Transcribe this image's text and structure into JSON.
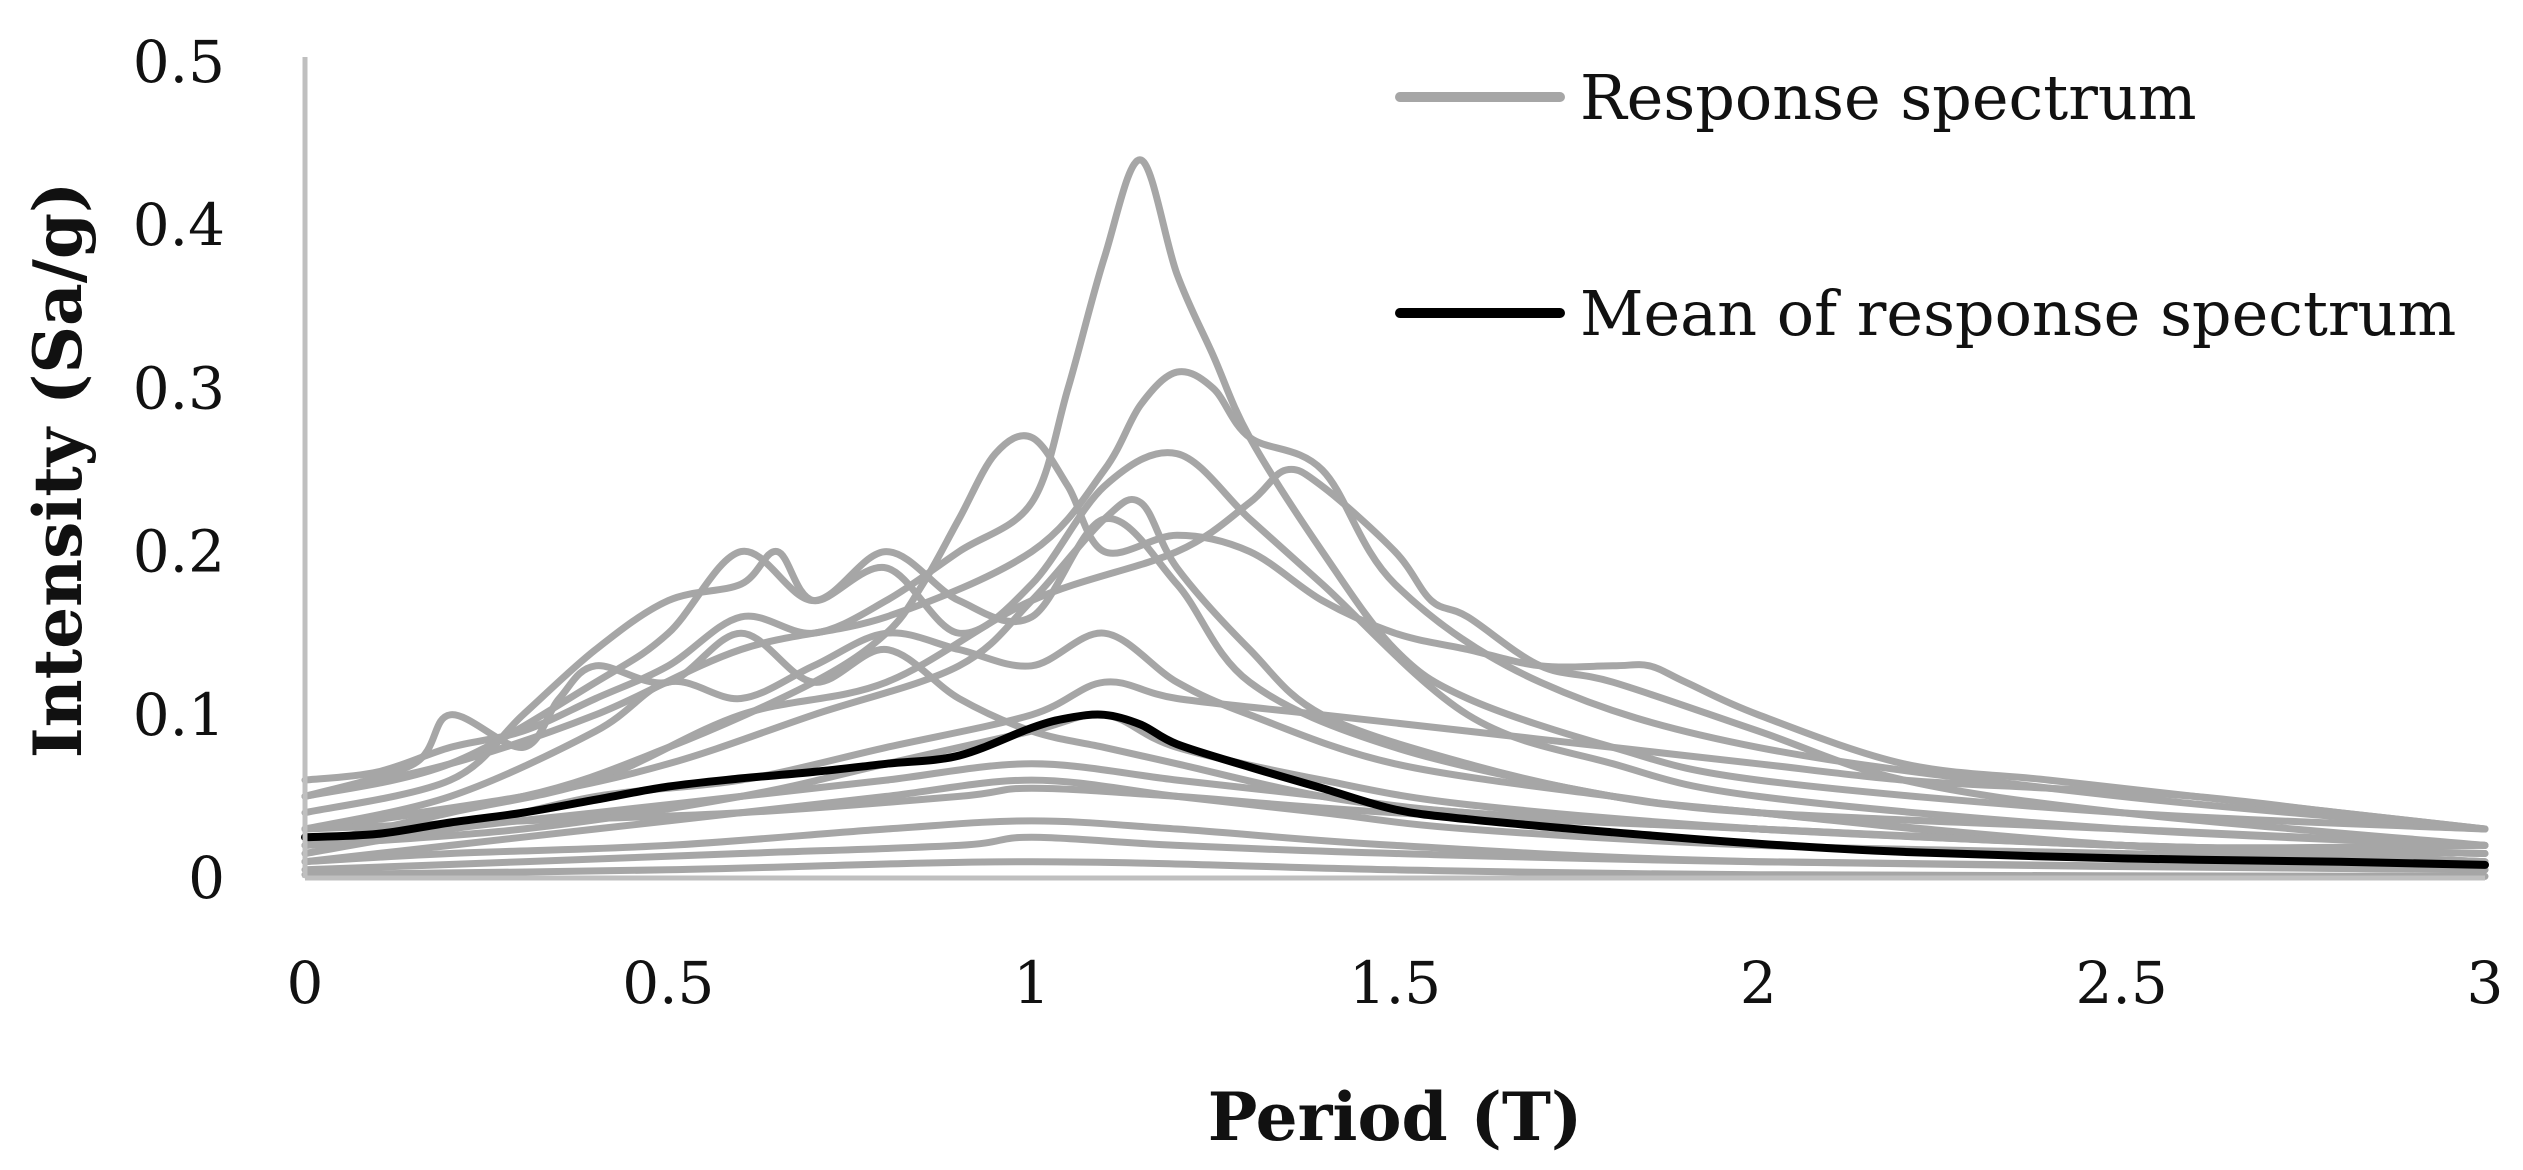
{
  "chart_data": {
    "type": "line",
    "title": "",
    "xlabel": "Period (T)",
    "ylabel": "Intensity (Sa/g)",
    "xlim": [
      0,
      3
    ],
    "ylim": [
      0,
      0.5
    ],
    "x_ticks": [
      0,
      0.5,
      1,
      1.5,
      2,
      2.5,
      3
    ],
    "x_tick_labels": [
      "0",
      "0.5",
      "1",
      "1.5",
      "2",
      "2.5",
      "3"
    ],
    "y_ticks": [
      0,
      0.1,
      0.2,
      0.3,
      0.4,
      0.5
    ],
    "y_tick_labels": [
      "0",
      "0.1",
      "0.2",
      "0.3",
      "0.4",
      "0.5"
    ],
    "grid": false,
    "legend_position": "top-right",
    "colors": {
      "spectrum": "#a6a6a6",
      "mean": "#000000",
      "axis": "#bfbfbf"
    },
    "legend": [
      {
        "label": "Response spectrum",
        "series": "spectrum"
      },
      {
        "label": "Mean of response spectrum",
        "series": "mean"
      }
    ],
    "series": [
      {
        "name": "Response spectrum",
        "style": "spectrum",
        "x": [
          0,
          0.1,
          0.2,
          0.3,
          0.4,
          0.5,
          0.6,
          0.7,
          0.8,
          0.9,
          1.0,
          1.05,
          1.1,
          1.15,
          1.2,
          1.25,
          1.3,
          1.4,
          1.5,
          1.6,
          1.8,
          2.0,
          2.5,
          3.0
        ],
        "y": [
          0.06,
          0.065,
          0.08,
          0.09,
          0.11,
          0.13,
          0.16,
          0.15,
          0.17,
          0.2,
          0.23,
          0.3,
          0.38,
          0.44,
          0.37,
          0.32,
          0.27,
          0.2,
          0.14,
          0.11,
          0.08,
          0.06,
          0.04,
          0.03
        ]
      },
      {
        "name": "Response spectrum",
        "style": "spectrum",
        "x": [
          0,
          0.2,
          0.4,
          0.6,
          0.8,
          1.0,
          1.1,
          1.15,
          1.2,
          1.25,
          1.3,
          1.4,
          1.5,
          1.7,
          2.0,
          2.5,
          3.0
        ],
        "y": [
          0.05,
          0.07,
          0.1,
          0.14,
          0.16,
          0.2,
          0.25,
          0.29,
          0.31,
          0.3,
          0.27,
          0.25,
          0.18,
          0.12,
          0.08,
          0.05,
          0.03
        ]
      },
      {
        "name": "Response spectrum",
        "style": "spectrum",
        "x": [
          0,
          0.2,
          0.3,
          0.4,
          0.5,
          0.6,
          0.65,
          0.7,
          0.8,
          0.9,
          1.0,
          1.1,
          1.2,
          1.3,
          1.4,
          1.6,
          1.8,
          2.0,
          2.5,
          3.0
        ],
        "y": [
          0.04,
          0.06,
          0.1,
          0.14,
          0.17,
          0.18,
          0.2,
          0.17,
          0.19,
          0.15,
          0.18,
          0.24,
          0.26,
          0.22,
          0.18,
          0.1,
          0.07,
          0.05,
          0.03,
          0.02
        ]
      },
      {
        "name": "Response spectrum",
        "style": "spectrum",
        "x": [
          0,
          0.3,
          0.5,
          0.7,
          0.8,
          0.85,
          0.9,
          0.95,
          1.0,
          1.05,
          1.1,
          1.2,
          1.3,
          1.4,
          1.5,
          1.6,
          1.7,
          1.8,
          1.85,
          1.9,
          2.0,
          2.2,
          2.4,
          2.6,
          3.0
        ],
        "y": [
          0.03,
          0.05,
          0.08,
          0.12,
          0.15,
          0.18,
          0.22,
          0.26,
          0.27,
          0.24,
          0.2,
          0.21,
          0.2,
          0.17,
          0.15,
          0.14,
          0.13,
          0.13,
          0.13,
          0.12,
          0.1,
          0.07,
          0.06,
          0.05,
          0.03
        ]
      },
      {
        "name": "Response spectrum",
        "style": "spectrum",
        "x": [
          0,
          0.2,
          0.4,
          0.6,
          0.8,
          1.0,
          1.2,
          1.3,
          1.35,
          1.4,
          1.5,
          1.55,
          1.6,
          1.7,
          1.8,
          2.0,
          2.2,
          2.5,
          3.0
        ],
        "y": [
          0.02,
          0.04,
          0.06,
          0.1,
          0.12,
          0.17,
          0.2,
          0.23,
          0.25,
          0.24,
          0.2,
          0.17,
          0.16,
          0.13,
          0.12,
          0.09,
          0.06,
          0.04,
          0.02
        ]
      },
      {
        "name": "Response spectrum",
        "style": "spectrum",
        "x": [
          0,
          0.2,
          0.4,
          0.5,
          0.6,
          0.7,
          0.8,
          0.9,
          1.0,
          1.1,
          1.2,
          1.3,
          1.5,
          1.8,
          2.0,
          2.5,
          3.0
        ],
        "y": [
          0.05,
          0.07,
          0.12,
          0.15,
          0.2,
          0.17,
          0.2,
          0.17,
          0.16,
          0.22,
          0.18,
          0.12,
          0.08,
          0.05,
          0.04,
          0.02,
          0.02
        ]
      },
      {
        "name": "Response spectrum",
        "style": "spectrum",
        "x": [
          0,
          0.3,
          0.5,
          0.7,
          0.9,
          1.0,
          1.1,
          1.15,
          1.2,
          1.3,
          1.4,
          1.6,
          1.8,
          2.0,
          2.5,
          3.0
        ],
        "y": [
          0.03,
          0.05,
          0.07,
          0.1,
          0.13,
          0.17,
          0.22,
          0.23,
          0.19,
          0.14,
          0.1,
          0.07,
          0.05,
          0.04,
          0.02,
          0.01
        ]
      },
      {
        "name": "Response spectrum",
        "style": "spectrum",
        "x": [
          0,
          0.15,
          0.2,
          0.3,
          0.35,
          0.4,
          0.5,
          0.6,
          0.7,
          0.8,
          0.9,
          1.0,
          1.1,
          1.2,
          1.4,
          1.6,
          2.0,
          2.5,
          3.0
        ],
        "y": [
          0.05,
          0.07,
          0.1,
          0.08,
          0.11,
          0.13,
          0.12,
          0.15,
          0.12,
          0.14,
          0.11,
          0.09,
          0.08,
          0.07,
          0.05,
          0.04,
          0.03,
          0.02,
          0.01
        ]
      },
      {
        "name": "Response spectrum",
        "style": "spectrum",
        "x": [
          0,
          0.2,
          0.4,
          0.6,
          0.8,
          1.0,
          1.1,
          1.2,
          1.4,
          1.6,
          1.8,
          2.0,
          2.2,
          2.4,
          2.6,
          2.8,
          3.0
        ],
        "y": [
          0.02,
          0.03,
          0.05,
          0.06,
          0.08,
          0.1,
          0.12,
          0.11,
          0.1,
          0.09,
          0.08,
          0.07,
          0.06,
          0.055,
          0.05,
          0.04,
          0.03
        ]
      },
      {
        "name": "Response spectrum",
        "style": "spectrum",
        "x": [
          0,
          0.2,
          0.4,
          0.5,
          0.6,
          0.7,
          0.8,
          0.9,
          1.0,
          1.1,
          1.2,
          1.3,
          1.5,
          1.8,
          2.0,
          2.5,
          3.0
        ],
        "y": [
          0.03,
          0.05,
          0.09,
          0.12,
          0.11,
          0.13,
          0.15,
          0.14,
          0.13,
          0.15,
          0.12,
          0.1,
          0.07,
          0.05,
          0.04,
          0.03,
          0.02
        ]
      },
      {
        "name": "Response spectrum",
        "style": "spectrum",
        "x": [
          0,
          0.2,
          0.4,
          0.6,
          0.8,
          1.0,
          1.2,
          1.4,
          1.6,
          2.0,
          2.5,
          3.0
        ],
        "y": [
          0.015,
          0.03,
          0.04,
          0.05,
          0.06,
          0.07,
          0.06,
          0.05,
          0.04,
          0.03,
          0.02,
          0.015
        ]
      },
      {
        "name": "Response spectrum",
        "style": "spectrum",
        "x": [
          0,
          0.2,
          0.4,
          0.6,
          0.8,
          1.0,
          1.2,
          1.4,
          1.6,
          2.0,
          2.5,
          3.0
        ],
        "y": [
          0.01,
          0.02,
          0.03,
          0.04,
          0.05,
          0.06,
          0.05,
          0.04,
          0.03,
          0.02,
          0.015,
          0.01
        ]
      },
      {
        "name": "Response spectrum",
        "style": "spectrum",
        "x": [
          0,
          0.3,
          0.6,
          0.8,
          1.0,
          1.1,
          1.2,
          1.4,
          1.6,
          2.0,
          2.5,
          3.0
        ],
        "y": [
          0.02,
          0.03,
          0.05,
          0.07,
          0.09,
          0.1,
          0.08,
          0.06,
          0.045,
          0.03,
          0.02,
          0.01
        ]
      },
      {
        "name": "Response spectrum",
        "style": "spectrum",
        "x": [
          0,
          0.3,
          0.6,
          0.9,
          1.0,
          1.2,
          1.5,
          2.0,
          3.0
        ],
        "y": [
          0.005,
          0.01,
          0.015,
          0.02,
          0.025,
          0.02,
          0.015,
          0.01,
          0.005
        ]
      },
      {
        "name": "Response spectrum",
        "style": "spectrum",
        "x": [
          0,
          0.3,
          0.6,
          0.9,
          1.0,
          1.2,
          1.5,
          2.0,
          2.5,
          3.0
        ],
        "y": [
          0.03,
          0.035,
          0.04,
          0.05,
          0.055,
          0.05,
          0.04,
          0.03,
          0.02,
          0.015
        ]
      },
      {
        "name": "Response spectrum",
        "style": "spectrum",
        "x": [
          0,
          0.2,
          0.5,
          0.8,
          1.0,
          1.2,
          1.5,
          2.0,
          3.0
        ],
        "y": [
          0.01,
          0.015,
          0.02,
          0.03,
          0.035,
          0.03,
          0.02,
          0.01,
          0.005
        ]
      },
      {
        "name": "Response spectrum",
        "style": "spectrum",
        "x": [
          0,
          0.5,
          1.0,
          1.5,
          2.0,
          3.0
        ],
        "y": [
          0.002,
          0.005,
          0.01,
          0.005,
          0.002,
          0.001
        ]
      },
      {
        "name": "Mean of response spectrum",
        "style": "mean",
        "x": [
          0,
          0.1,
          0.2,
          0.3,
          0.4,
          0.5,
          0.6,
          0.7,
          0.8,
          0.9,
          1.0,
          1.05,
          1.1,
          1.15,
          1.2,
          1.3,
          1.4,
          1.5,
          1.6,
          1.8,
          2.0,
          2.2,
          2.5,
          2.8,
          3.0
        ],
        "y": [
          0.025,
          0.027,
          0.034,
          0.04,
          0.048,
          0.056,
          0.061,
          0.065,
          0.07,
          0.075,
          0.092,
          0.098,
          0.1,
          0.094,
          0.082,
          0.068,
          0.055,
          0.042,
          0.036,
          0.028,
          0.021,
          0.016,
          0.012,
          0.01,
          0.008
        ]
      }
    ]
  }
}
